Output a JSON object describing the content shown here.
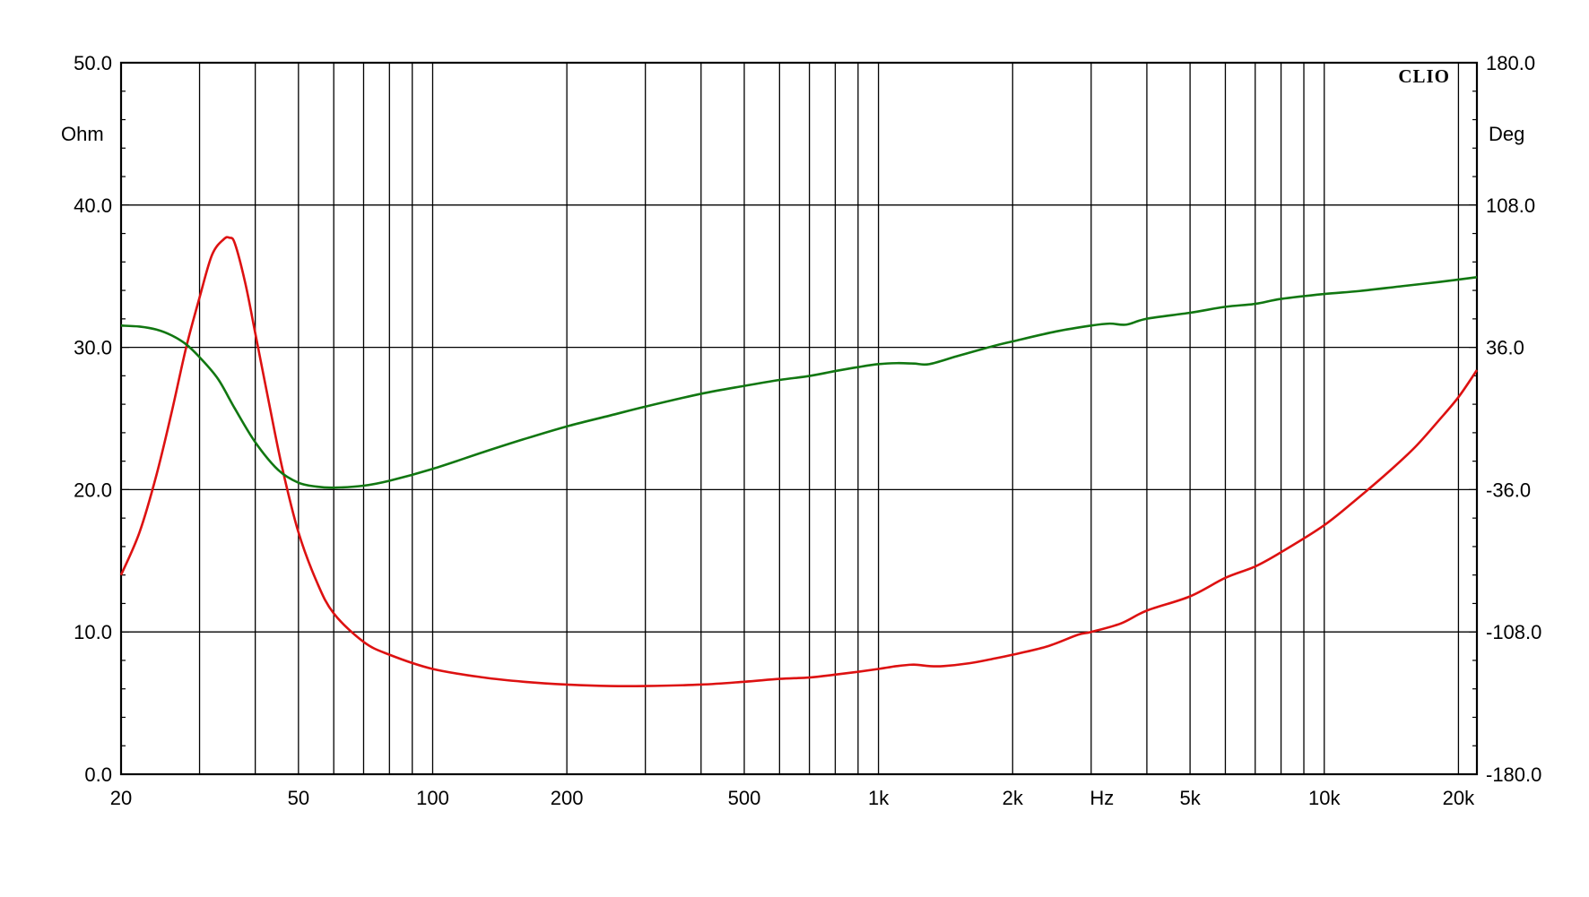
{
  "chart_data": {
    "type": "line",
    "brand": "CLIO",
    "x_unit_label": "Hz",
    "x_scale": "log",
    "xlim": [
      20,
      22000
    ],
    "x_tick_values": [
      20,
      50,
      100,
      200,
      500,
      1000,
      2000,
      5000,
      10000,
      20000
    ],
    "x_tick_labels": [
      "20",
      "50",
      "100",
      "200",
      "500",
      "1k",
      "2k",
      "5k",
      "10k",
      "20k"
    ],
    "y_left": {
      "unit_label": "Ohm",
      "lim": [
        0,
        50
      ],
      "tick_values": [
        0,
        10,
        20,
        30,
        40,
        50
      ],
      "tick_labels": [
        "0.0",
        "10.0",
        "20.0",
        "30.0",
        "40.0",
        "50.0"
      ]
    },
    "y_right": {
      "unit_label": "Deg",
      "lim": [
        -180,
        180
      ],
      "tick_values": [
        -180,
        -108,
        -36,
        36,
        108,
        180
      ],
      "tick_labels": [
        "-180.0",
        "-108.0",
        "-36.0",
        "36.0",
        "108.0",
        "180.0"
      ]
    },
    "grid": true,
    "colors": {
      "impedance": "#dd1111",
      "phase": "#117711",
      "grid": "#000000"
    },
    "series": [
      {
        "axis": "left",
        "color": "#dd1111",
        "x": [
          20,
          22,
          24,
          26,
          28,
          30,
          32,
          34,
          35,
          36,
          38,
          40,
          43,
          46,
          50,
          55,
          60,
          70,
          80,
          100,
          130,
          160,
          200,
          250,
          300,
          400,
          500,
          600,
          700,
          800,
          900,
          1000,
          1100,
          1200,
          1300,
          1400,
          1600,
          1800,
          2000,
          2400,
          2800,
          3000,
          3500,
          4000,
          5000,
          6000,
          7000,
          8000,
          10000,
          12000,
          14000,
          16000,
          18000,
          20000,
          22000
        ],
        "values": [
          14.0,
          17.0,
          21.0,
          25.5,
          30.0,
          33.5,
          36.5,
          37.6,
          37.7,
          37.3,
          34.5,
          31.0,
          26.0,
          21.5,
          17.0,
          13.5,
          11.3,
          9.3,
          8.4,
          7.4,
          6.8,
          6.5,
          6.3,
          6.2,
          6.2,
          6.3,
          6.5,
          6.7,
          6.8,
          7.0,
          7.2,
          7.4,
          7.6,
          7.7,
          7.6,
          7.6,
          7.8,
          8.1,
          8.4,
          9.0,
          9.8,
          10.0,
          10.6,
          11.5,
          12.5,
          13.8,
          14.6,
          15.6,
          17.5,
          19.5,
          21.3,
          23.0,
          24.8,
          26.5,
          28.4
        ]
      },
      {
        "axis": "right",
        "color": "#117711",
        "x": [
          20,
          22,
          24,
          26,
          28,
          30,
          33,
          36,
          40,
          45,
          50,
          55,
          60,
          70,
          80,
          100,
          130,
          160,
          200,
          250,
          300,
          400,
          500,
          600,
          700,
          800,
          900,
          1000,
          1100,
          1200,
          1300,
          1500,
          1800,
          2000,
          2500,
          3000,
          3300,
          3600,
          4000,
          5000,
          6000,
          7000,
          8000,
          10000,
          12000,
          15000,
          18000,
          22000
        ],
        "values": [
          47.0,
          46.5,
          45.0,
          42.0,
          37.5,
          31.0,
          20.0,
          5.0,
          -12.0,
          -26.0,
          -32.5,
          -34.5,
          -35.0,
          -34.0,
          -31.5,
          -25.5,
          -17.0,
          -10.5,
          -4.0,
          1.5,
          6.0,
          12.5,
          16.5,
          19.5,
          21.5,
          24.0,
          26.0,
          27.5,
          28.0,
          27.8,
          27.5,
          31.5,
          36.5,
          39.0,
          44.0,
          47.0,
          48.0,
          47.5,
          50.5,
          53.5,
          56.5,
          58.0,
          60.5,
          63.0,
          64.5,
          67.0,
          69.0,
          71.5
        ]
      }
    ]
  }
}
